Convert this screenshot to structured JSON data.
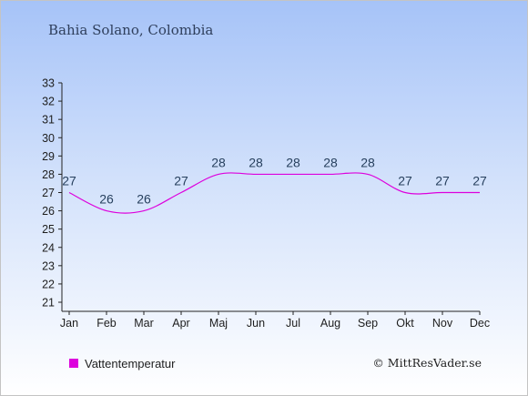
{
  "chart_data": {
    "type": "line",
    "title": "Bahia Solano, Colombia",
    "categories": [
      "Jan",
      "Feb",
      "Mar",
      "Apr",
      "Maj",
      "Jun",
      "Jul",
      "Aug",
      "Sep",
      "Okt",
      "Nov",
      "Dec"
    ],
    "series": [
      {
        "name": "Vattentemperatur",
        "values": [
          27,
          26,
          26,
          27,
          28,
          28,
          28,
          28,
          28,
          27,
          27,
          27
        ],
        "color": "#dd00dd"
      }
    ],
    "ylim": [
      21,
      33
    ],
    "yticks": [
      "21",
      "22",
      "23",
      "24",
      "25",
      "26",
      "27",
      "28",
      "29",
      "30",
      "31",
      "32",
      "33"
    ],
    "grid": false,
    "legend_position": "bottom-left"
  },
  "credit": "© MittResVader.se"
}
